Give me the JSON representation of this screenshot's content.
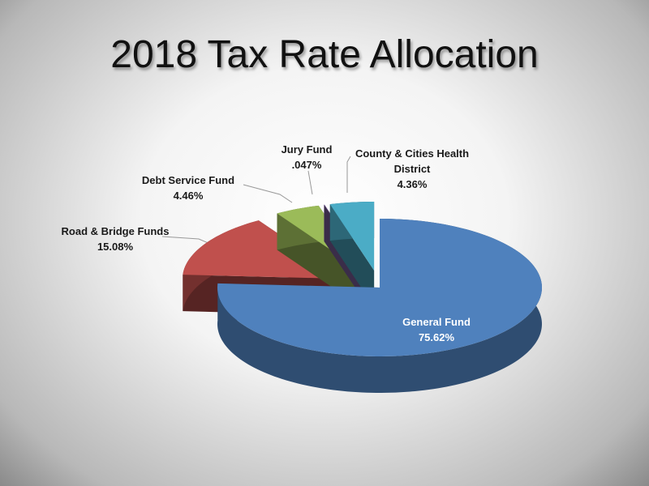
{
  "chart_data": {
    "type": "pie",
    "title": "2018 Tax Rate Allocation",
    "categories": [
      "General Fund",
      "Road & Bridge Funds",
      "Debt Service Fund",
      "Jury Fund",
      "County & Cities Health District"
    ],
    "values": [
      75.62,
      15.08,
      4.46,
      0.047,
      4.36
    ],
    "value_labels": [
      "75.62%",
      "15.08%",
      "4.46%",
      ".047%",
      "4.36%"
    ],
    "colors": [
      "#4f81bd",
      "#c0504d",
      "#9bbb59",
      "#8064a2",
      "#4bacc6"
    ]
  }
}
